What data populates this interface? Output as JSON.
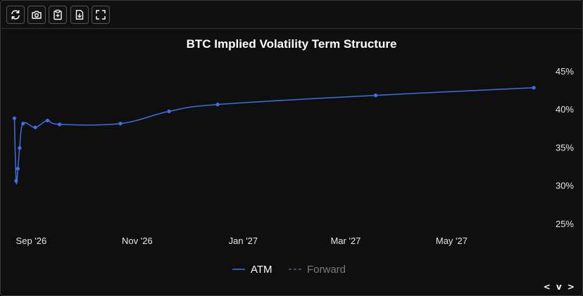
{
  "toolbar": {
    "buttons": [
      {
        "name": "refresh-icon"
      },
      {
        "name": "camera-icon"
      },
      {
        "name": "clipboard-icon"
      },
      {
        "name": "file-download-icon"
      },
      {
        "name": "fullscreen-icon"
      }
    ]
  },
  "nav_arrows": "< v >",
  "colors": {
    "background": "#0f0f0f",
    "atm": "#3e6fe8",
    "forward": "#5a5f80",
    "text": "#ffffff",
    "axis_text": "#e6e6e6",
    "legend_inactive": "#7a7a7a"
  },
  "chart_data": {
    "type": "line",
    "title": "BTC Implied Volatility Term Structure",
    "x_axis": {
      "type": "date",
      "min": "2026-08-29",
      "max": "2027-06-29",
      "tick_dates": [
        "2026-09-01",
        "2026-11-01",
        "2027-01-01",
        "2027-03-01",
        "2027-05-01"
      ],
      "tick_labels": [
        "Sep '26",
        "Nov '26",
        "Jan '27",
        "Mar '27",
        "May '27"
      ]
    },
    "y_axis": {
      "position": "right",
      "ylim": [
        25,
        46
      ],
      "ticks": [
        25,
        30,
        35,
        40,
        45
      ],
      "tick_labels": [
        "25%",
        "30%",
        "35%",
        "40%",
        "45%"
      ]
    },
    "series": [
      {
        "name": "ATM",
        "points": [
          {
            "x": "2026-08-30",
            "y": 38.8
          },
          {
            "x": "2026-08-31",
            "y": 30.6
          },
          {
            "x": "2026-09-01",
            "y": 32.2
          },
          {
            "x": "2026-09-02",
            "y": 34.9
          },
          {
            "x": "2026-09-04",
            "y": 38.1
          },
          {
            "x": "2026-09-11",
            "y": 37.6
          },
          {
            "x": "2026-09-18",
            "y": 38.5
          },
          {
            "x": "2026-09-25",
            "y": 38.0
          },
          {
            "x": "2026-10-30",
            "y": 38.1
          },
          {
            "x": "2026-11-27",
            "y": 39.7
          },
          {
            "x": "2026-12-25",
            "y": 40.6
          },
          {
            "x": "2027-03-26",
            "y": 41.8
          },
          {
            "x": "2027-06-25",
            "y": 42.8
          }
        ]
      },
      {
        "name": "Forward",
        "points": []
      }
    ],
    "legend": {
      "position": "bottom-center",
      "entries": [
        {
          "label": "ATM",
          "style": "solid",
          "active": true
        },
        {
          "label": "Forward",
          "style": "dashed",
          "active": false
        }
      ]
    },
    "grid": false
  }
}
